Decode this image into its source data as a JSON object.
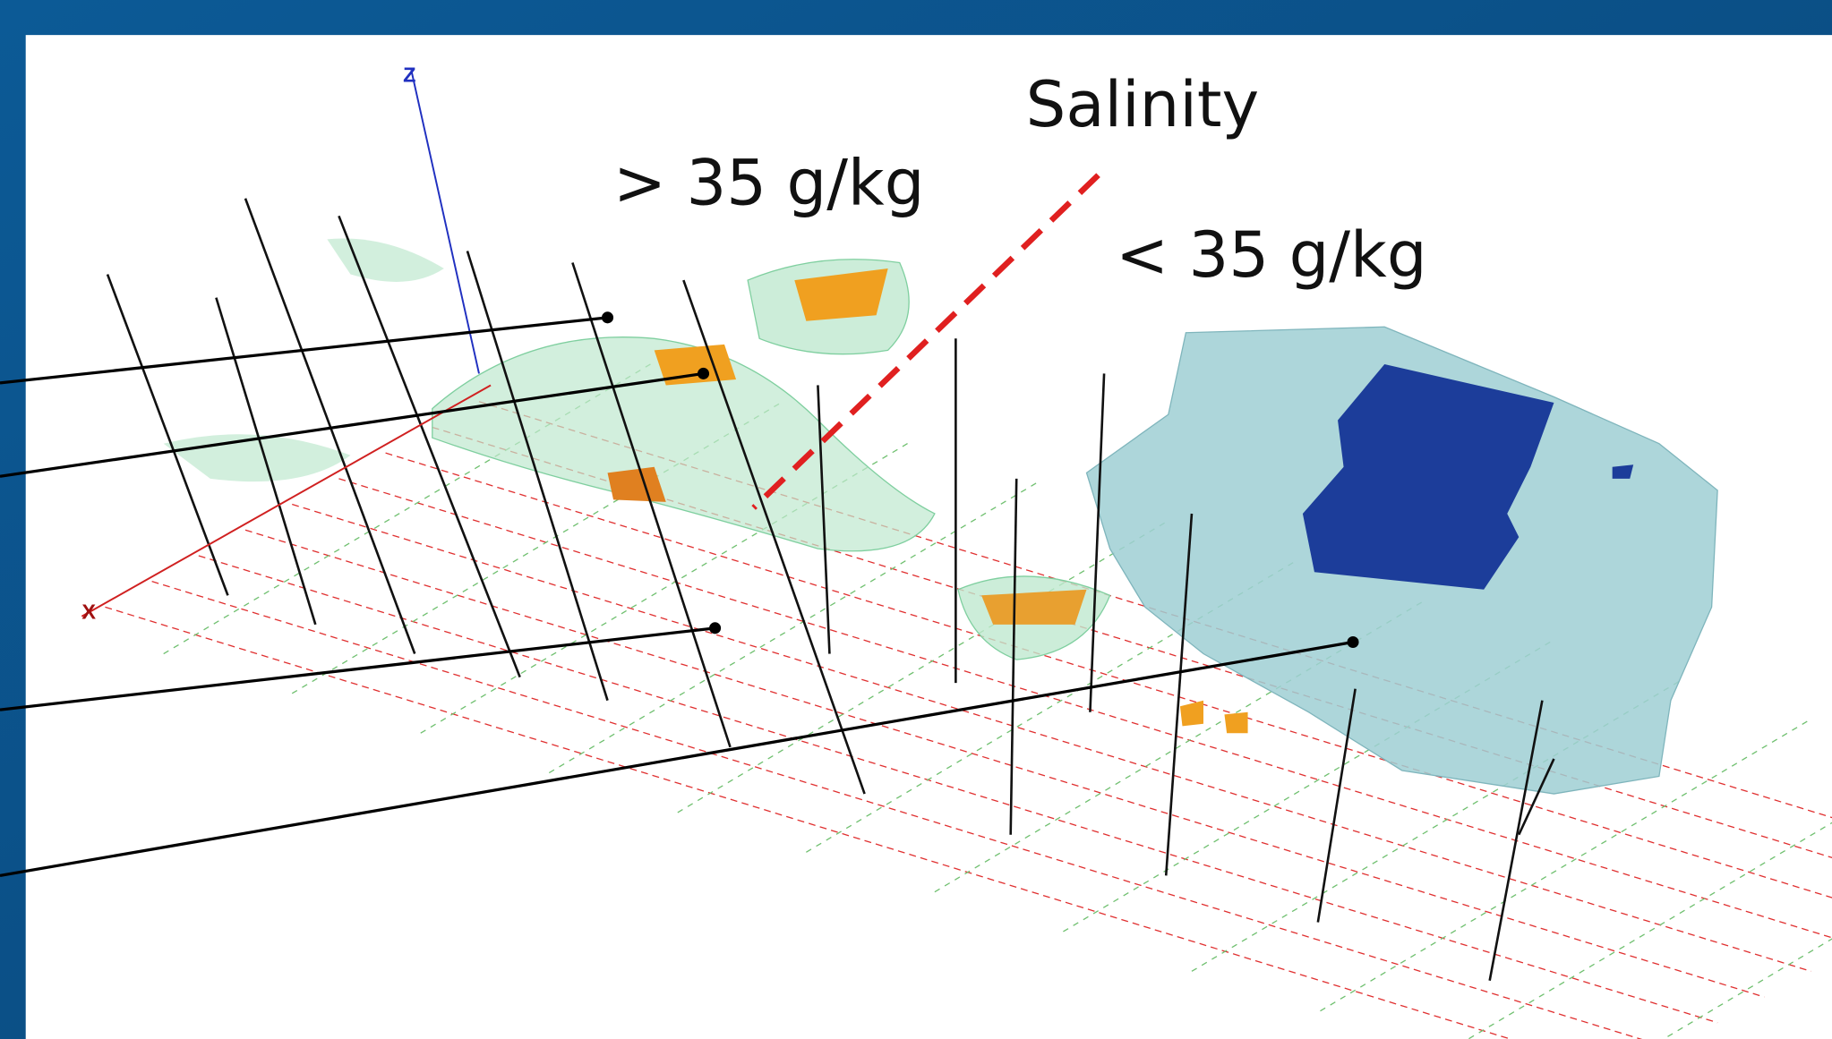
{
  "labels": {
    "salinity": "Salinity",
    "high": "> 35 g/kg",
    "low": "< 35 g/kg"
  },
  "axes": {
    "x": "X",
    "z": "Z"
  }
}
